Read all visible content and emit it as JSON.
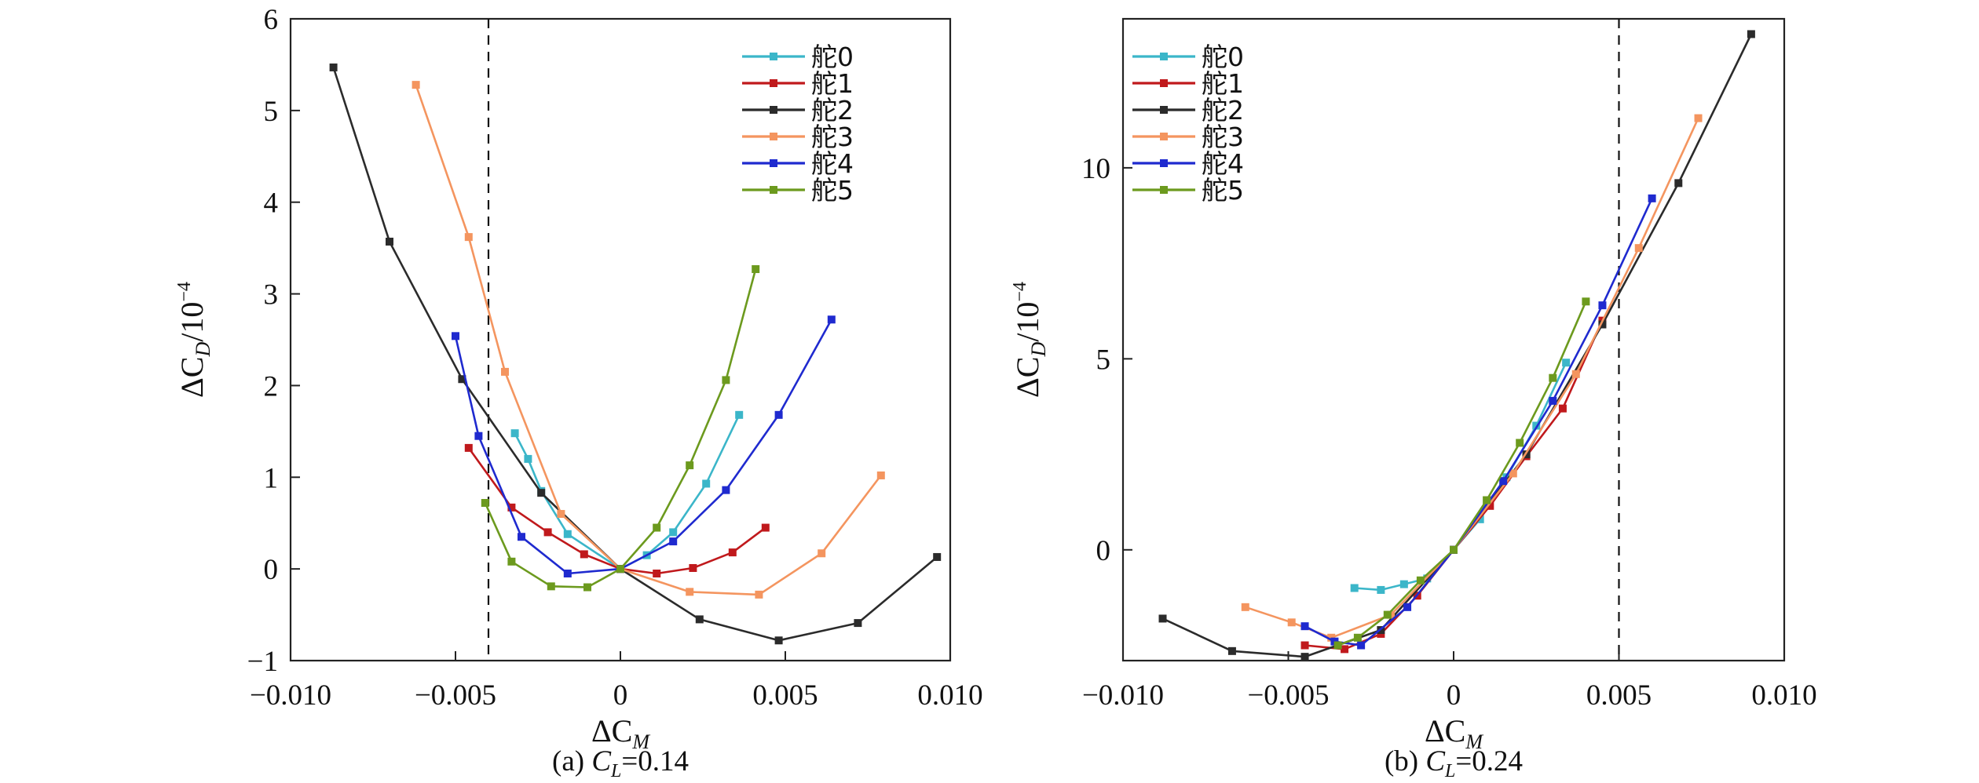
{
  "chart_data": [
    {
      "type": "line",
      "caption": {
        "prefix": "(a) ",
        "var": "C",
        "sub": "L",
        "suffix": "=0.14"
      },
      "xlabel": {
        "main": "ΔC",
        "sub": "M"
      },
      "ylabel": {
        "main": "ΔC",
        "sub": "D",
        "tail": "/10",
        "sup": "−4"
      },
      "xlim": [
        -0.01,
        0.01
      ],
      "ylim": [
        -1,
        6
      ],
      "xticks": [
        -0.01,
        -0.005,
        0,
        0.005,
        0.01
      ],
      "xtick_labels": [
        "−0.010",
        "−0.005",
        "0",
        "0.005",
        "0.010"
      ],
      "yticks": [
        -1,
        0,
        1,
        2,
        3,
        4,
        5,
        6
      ],
      "ytick_labels": [
        "−1",
        "0",
        "1",
        "2",
        "3",
        "4",
        "5",
        "6"
      ],
      "reference_line_x": -0.004,
      "grid": false,
      "legend_position": "top-right",
      "series": [
        {
          "name": "舵0",
          "color": "#3BB6C9",
          "points": [
            [
              -0.0032,
              1.48
            ],
            [
              -0.0028,
              1.2
            ],
            [
              -0.0024,
              0.85
            ],
            [
              -0.0016,
              0.38
            ],
            [
              0,
              0
            ],
            [
              0.0008,
              0.15
            ],
            [
              0.0016,
              0.4
            ],
            [
              0.0026,
              0.93
            ],
            [
              0.0036,
              1.68
            ]
          ]
        },
        {
          "name": "舵1",
          "color": "#C0191C",
          "points": [
            [
              -0.0046,
              1.32
            ],
            [
              -0.0033,
              0.67
            ],
            [
              -0.0022,
              0.4
            ],
            [
              -0.0011,
              0.16
            ],
            [
              0,
              0
            ],
            [
              0.0011,
              -0.05
            ],
            [
              0.0022,
              0.01
            ],
            [
              0.0034,
              0.18
            ],
            [
              0.0044,
              0.45
            ]
          ]
        },
        {
          "name": "舵2",
          "color": "#2B2B2B",
          "points": [
            [
              -0.0087,
              5.47
            ],
            [
              -0.007,
              3.57
            ],
            [
              -0.0048,
              2.07
            ],
            [
              -0.0024,
              0.83
            ],
            [
              0,
              0
            ],
            [
              0.0024,
              -0.55
            ],
            [
              0.0048,
              -0.78
            ],
            [
              0.0072,
              -0.59
            ],
            [
              0.0096,
              0.13
            ]
          ]
        },
        {
          "name": "舵3",
          "color": "#F4955F",
          "points": [
            [
              -0.0062,
              5.28
            ],
            [
              -0.0046,
              3.62
            ],
            [
              -0.0035,
              2.15
            ],
            [
              -0.0018,
              0.6
            ],
            [
              0,
              0
            ],
            [
              0.0021,
              -0.25
            ],
            [
              0.0042,
              -0.28
            ],
            [
              0.0061,
              0.17
            ],
            [
              0.0079,
              1.02
            ]
          ]
        },
        {
          "name": "舵4",
          "color": "#1F2ACF",
          "points": [
            [
              -0.005,
              2.54
            ],
            [
              -0.0043,
              1.45
            ],
            [
              -0.003,
              0.35
            ],
            [
              -0.0016,
              -0.05
            ],
            [
              0,
              0
            ],
            [
              0.0016,
              0.3
            ],
            [
              0.0032,
              0.86
            ],
            [
              0.0048,
              1.68
            ],
            [
              0.0064,
              2.72
            ]
          ]
        },
        {
          "name": "舵5",
          "color": "#6C9A1E",
          "points": [
            [
              -0.0041,
              0.72
            ],
            [
              -0.0033,
              0.08
            ],
            [
              -0.0021,
              -0.19
            ],
            [
              -0.001,
              -0.2
            ],
            [
              0,
              0
            ],
            [
              0.0011,
              0.45
            ],
            [
              0.0021,
              1.13
            ],
            [
              0.0032,
              2.06
            ],
            [
              0.0041,
              3.27
            ]
          ]
        }
      ]
    },
    {
      "type": "line",
      "caption": {
        "prefix": "(b) ",
        "var": "C",
        "sub": "L",
        "suffix": "=0.24"
      },
      "xlabel": {
        "main": "ΔC",
        "sub": "M"
      },
      "ylabel": {
        "main": "ΔC",
        "sub": "D",
        "tail": "/10",
        "sup": "−4"
      },
      "xlim": [
        -0.01,
        0.01
      ],
      "ylim": [
        -2.9,
        13.9
      ],
      "xticks": [
        -0.01,
        -0.005,
        0,
        0.005,
        0.01
      ],
      "xtick_labels": [
        "−0.010",
        "−0.005",
        "0",
        "0.005",
        "0.010"
      ],
      "yticks": [
        0,
        5,
        10
      ],
      "ytick_labels": [
        "0",
        "5",
        "10"
      ],
      "reference_line_x": 0.005,
      "grid": false,
      "legend_position": "top-left",
      "series": [
        {
          "name": "舵0",
          "color": "#3BB6C9",
          "points": [
            [
              -0.003,
              -1.0
            ],
            [
              -0.0022,
              -1.05
            ],
            [
              -0.0015,
              -0.9
            ],
            [
              -0.0008,
              -0.75
            ],
            [
              0,
              0
            ],
            [
              0.0008,
              0.8
            ],
            [
              0.0016,
              1.9
            ],
            [
              0.0025,
              3.25
            ],
            [
              0.0034,
              4.9
            ]
          ]
        },
        {
          "name": "舵1",
          "color": "#C0191C",
          "points": [
            [
              -0.0045,
              -2.5
            ],
            [
              -0.0033,
              -2.6
            ],
            [
              -0.0022,
              -2.2
            ],
            [
              -0.0011,
              -1.2
            ],
            [
              0,
              0
            ],
            [
              0.0011,
              1.15
            ],
            [
              0.0022,
              2.45
            ],
            [
              0.0033,
              3.7
            ],
            [
              0.0045,
              6.0
            ]
          ]
        },
        {
          "name": "舵2",
          "color": "#2B2B2B",
          "points": [
            [
              -0.0088,
              -1.8
            ],
            [
              -0.0067,
              -2.65
            ],
            [
              -0.0045,
              -2.8
            ],
            [
              -0.0022,
              -2.1
            ],
            [
              0,
              0
            ],
            [
              0.0022,
              2.5
            ],
            [
              0.0045,
              5.9
            ],
            [
              0.0068,
              9.6
            ],
            [
              0.009,
              13.5
            ]
          ]
        },
        {
          "name": "舵3",
          "color": "#F4955F",
          "points": [
            [
              -0.0063,
              -1.5
            ],
            [
              -0.0049,
              -1.9
            ],
            [
              -0.0037,
              -2.3
            ],
            [
              -0.0019,
              -1.7
            ],
            [
              0,
              0
            ],
            [
              0.0018,
              2.0
            ],
            [
              0.0037,
              4.6
            ],
            [
              0.0056,
              7.9
            ],
            [
              0.0074,
              11.3
            ]
          ]
        },
        {
          "name": "舵4",
          "color": "#1F2ACF",
          "points": [
            [
              -0.0045,
              -2.0
            ],
            [
              -0.0036,
              -2.4
            ],
            [
              -0.0028,
              -2.5
            ],
            [
              -0.0014,
              -1.5
            ],
            [
              0,
              0
            ],
            [
              0.0015,
              1.8
            ],
            [
              0.003,
              3.9
            ],
            [
              0.0045,
              6.4
            ],
            [
              0.006,
              9.2
            ]
          ]
        },
        {
          "name": "舵5",
          "color": "#6C9A1E",
          "points": [
            [
              -0.0035,
              -2.5
            ],
            [
              -0.0029,
              -2.3
            ],
            [
              -0.002,
              -1.7
            ],
            [
              -0.001,
              -0.8
            ],
            [
              0,
              0
            ],
            [
              0.001,
              1.3
            ],
            [
              0.002,
              2.8
            ],
            [
              0.003,
              4.5
            ],
            [
              0.004,
              6.5
            ]
          ]
        }
      ]
    }
  ]
}
